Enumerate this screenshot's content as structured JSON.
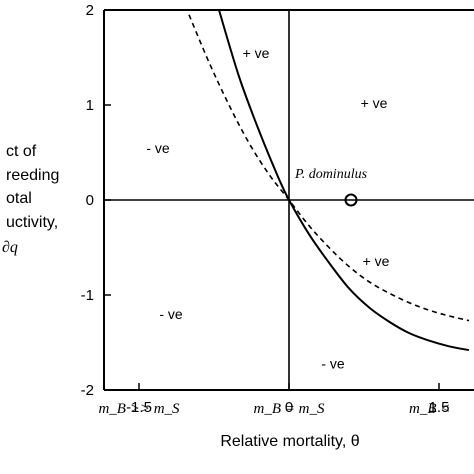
{
  "chart_data": {
    "type": "line",
    "xlabel": "Relative mortality, θ",
    "ylabel_lines": [
      "ct of",
      "reeding",
      "otal",
      "uctivity,",
      "∂q"
    ],
    "xlim": [
      -1.85,
      1.85
    ],
    "ylim": [
      -2,
      2
    ],
    "x_ticks": [
      {
        "value": -1.5,
        "label": "-1.5"
      },
      {
        "value": 0,
        "label": "0"
      },
      {
        "value": 1.5,
        "label": "1.5"
      }
    ],
    "y_ticks": [
      {
        "value": 2,
        "label": "2"
      },
      {
        "value": 1,
        "label": "1"
      },
      {
        "value": 0,
        "label": "0"
      },
      {
        "value": -1,
        "label": "-1"
      },
      {
        "value": -2,
        "label": "-2"
      }
    ],
    "x_regime_labels": [
      {
        "x": -1.5,
        "label": "m_B >> m_S"
      },
      {
        "x": 0,
        "label": "m_B = m_S"
      },
      {
        "x": 1.5,
        "label": "m_B <"
      }
    ],
    "series": [
      {
        "style": "solid",
        "points": [
          [
            -0.7,
            2.0
          ],
          [
            -0.5,
            1.3
          ],
          [
            -0.3,
            0.73
          ],
          [
            -0.1,
            0.22
          ],
          [
            0,
            0
          ],
          [
            0.2,
            -0.36
          ],
          [
            0.4,
            -0.66
          ],
          [
            0.6,
            -0.93
          ],
          [
            0.8,
            -1.13
          ],
          [
            1.0,
            -1.28
          ],
          [
            1.2,
            -1.4
          ],
          [
            1.4,
            -1.48
          ],
          [
            1.6,
            -1.54
          ],
          [
            1.8,
            -1.58
          ]
        ]
      },
      {
        "style": "dashed",
        "points": [
          [
            -1.0,
            1.95
          ],
          [
            -0.8,
            1.45
          ],
          [
            -0.6,
            1.0
          ],
          [
            -0.4,
            0.6
          ],
          [
            -0.2,
            0.27
          ],
          [
            0,
            0
          ],
          [
            0.2,
            -0.27
          ],
          [
            0.4,
            -0.5
          ],
          [
            0.6,
            -0.7
          ],
          [
            0.8,
            -0.86
          ],
          [
            1.0,
            -0.98
          ],
          [
            1.2,
            -1.08
          ],
          [
            1.4,
            -1.16
          ],
          [
            1.6,
            -1.22
          ],
          [
            1.8,
            -1.27
          ]
        ]
      }
    ],
    "region_labels": [
      {
        "text": "+ ve",
        "x": -0.33,
        "y": 1.55
      },
      {
        "text": "+ ve",
        "x": 0.85,
        "y": 1.02
      },
      {
        "text": "- ve",
        "x": -1.31,
        "y": 0.55
      },
      {
        "text": "+ ve",
        "x": 0.87,
        "y": -0.64
      },
      {
        "text": "- ve",
        "x": -1.18,
        "y": -1.2
      },
      {
        "text": "- ve",
        "x": 0.44,
        "y": -1.72
      }
    ],
    "point_annotation": {
      "label": "P. dominulus",
      "x": 0.62,
      "y": 0.0
    }
  }
}
